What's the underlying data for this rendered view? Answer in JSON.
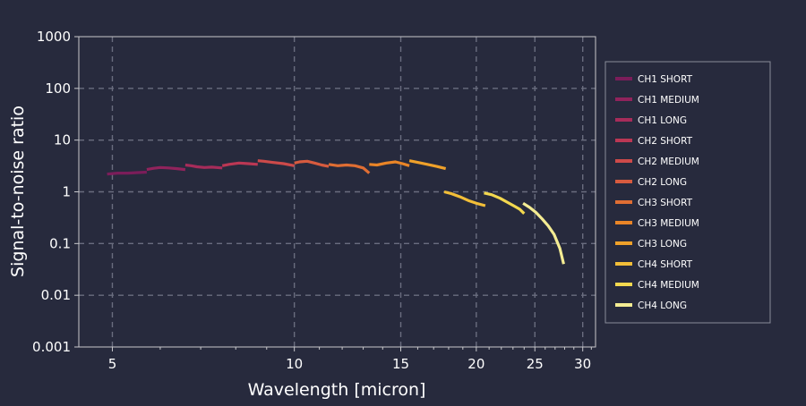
{
  "colors": {
    "background": "#272a3d",
    "axis": "#c8c8cc",
    "grid": "#6a6d7f",
    "text": "#ffffff",
    "legend_border": "#8a8c99"
  },
  "chart_data": {
    "type": "line",
    "title": "",
    "xlabel": "Wavelength [micron]",
    "ylabel": "Signal-to-noise ratio",
    "xscale": "log",
    "yscale": "log",
    "xlim": [
      4.4,
      31.5
    ],
    "ylim": [
      0.001,
      1000
    ],
    "grid": true,
    "legend_position": "right",
    "x_ticks": [
      5,
      10,
      15,
      20,
      25,
      30
    ],
    "x_tick_labels": [
      "5",
      "10",
      "15",
      "20",
      "25",
      "30"
    ],
    "y_ticks": [
      0.001,
      0.01,
      0.1,
      1,
      10,
      100,
      1000
    ],
    "y_tick_labels": [
      "0.001",
      "0.01",
      "0.1",
      "1",
      "10",
      "100",
      "1000"
    ],
    "series": [
      {
        "name": "CH1 SHORT",
        "color": "#7b1d5a",
        "x": [
          4.9,
          5.1,
          5.3,
          5.5,
          5.7
        ],
        "y": [
          2.2,
          2.3,
          2.3,
          2.35,
          2.4
        ]
      },
      {
        "name": "CH1 MEDIUM",
        "color": "#91235c",
        "x": [
          5.7,
          5.85,
          6.0,
          6.2,
          6.4,
          6.6
        ],
        "y": [
          2.7,
          2.85,
          2.95,
          2.9,
          2.8,
          2.7
        ]
      },
      {
        "name": "CH1 LONG",
        "color": "#a72c5a",
        "x": [
          6.6,
          6.75,
          6.9,
          7.1,
          7.3,
          7.6
        ],
        "y": [
          3.3,
          3.2,
          3.05,
          2.95,
          3.0,
          2.9
        ]
      },
      {
        "name": "CH2 SHORT",
        "color": "#bb3754",
        "x": [
          7.6,
          7.8,
          8.1,
          8.4,
          8.7
        ],
        "y": [
          3.2,
          3.4,
          3.6,
          3.5,
          3.4
        ]
      },
      {
        "name": "CH2 MEDIUM",
        "color": "#cd4a4a",
        "x": [
          8.7,
          8.9,
          9.2,
          9.6,
          10.0
        ],
        "y": [
          4.0,
          3.9,
          3.7,
          3.5,
          3.2
        ]
      },
      {
        "name": "CH2 LONG",
        "color": "#d75b3f",
        "x": [
          10.0,
          10.2,
          10.5,
          10.8,
          11.1,
          11.4
        ],
        "y": [
          3.6,
          3.8,
          3.9,
          3.6,
          3.3,
          3.1
        ]
      },
      {
        "name": "CH3 SHORT",
        "color": "#e06e33",
        "x": [
          11.4,
          11.8,
          12.2,
          12.6,
          13.0,
          13.3
        ],
        "y": [
          3.4,
          3.2,
          3.3,
          3.2,
          2.9,
          2.3
        ]
      },
      {
        "name": "CH3 MEDIUM",
        "color": "#ea8527",
        "x": [
          13.3,
          13.7,
          14.2,
          14.7,
          15.1,
          15.5
        ],
        "y": [
          3.4,
          3.3,
          3.6,
          3.8,
          3.5,
          3.2
        ]
      },
      {
        "name": "CH3 LONG",
        "color": "#efa12a",
        "x": [
          15.5,
          16.0,
          16.6,
          17.2,
          17.8
        ],
        "y": [
          4.0,
          3.7,
          3.4,
          3.1,
          2.8
        ]
      },
      {
        "name": "CH4 SHORT",
        "color": "#f2be38",
        "x": [
          17.7,
          18.2,
          18.8,
          19.4,
          20.0,
          20.7
        ],
        "y": [
          1.0,
          0.92,
          0.8,
          0.68,
          0.6,
          0.54
        ]
      },
      {
        "name": "CH4 MEDIUM",
        "color": "#f3d84f",
        "x": [
          20.6,
          21.2,
          21.9,
          22.5,
          23.1,
          23.6,
          24.0
        ],
        "y": [
          0.95,
          0.88,
          0.75,
          0.63,
          0.53,
          0.46,
          0.38
        ]
      },
      {
        "name": "CH4 LONG",
        "color": "#f4ec93",
        "x": [
          23.9,
          24.5,
          25.1,
          25.7,
          26.3,
          26.9,
          27.5,
          27.9
        ],
        "y": [
          0.6,
          0.5,
          0.4,
          0.3,
          0.22,
          0.15,
          0.08,
          0.04
        ]
      }
    ]
  }
}
